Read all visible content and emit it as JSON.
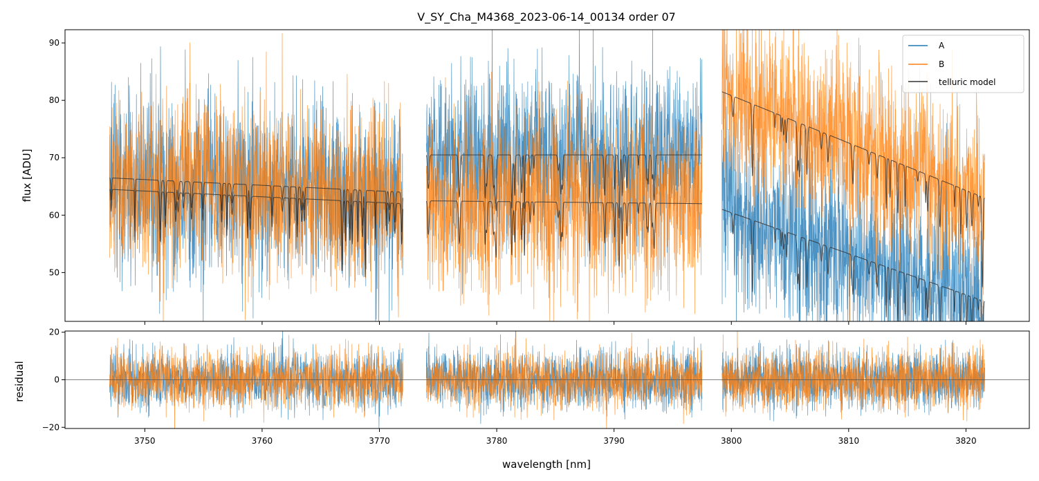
{
  "chart_data": [
    {
      "type": "line",
      "title": "V_SY_Cha_M4368_2023-06-14_00134  order 07",
      "xlabel": "",
      "ylabel": "flux [ADU]",
      "xlim": [
        3743.2,
        3825.4
      ],
      "ylim": [
        41.5,
        92.3
      ],
      "yticks": [
        50,
        60,
        70,
        80,
        90
      ],
      "ytick_labels": [
        "50",
        "60",
        "70",
        "80",
        "90"
      ],
      "segments": [
        [
          3747.0,
          3772.0
        ],
        [
          3774.0,
          3797.5
        ],
        [
          3799.2,
          3821.6
        ]
      ],
      "series": [
        {
          "name": "A",
          "color": "#1f77b4",
          "kind": "noisy spectrum",
          "trend": [
            [
              3747.0,
              65.0
            ],
            [
              3772.0,
              64.0
            ],
            [
              3774.0,
              70.5
            ],
            [
              3797.5,
              70.5
            ],
            [
              3799.2,
              61.0
            ],
            [
              3821.6,
              45.0
            ]
          ]
        },
        {
          "name": "B",
          "color": "#ff7f0e",
          "kind": "noisy spectrum",
          "trend": [
            [
              3747.0,
              66.5
            ],
            [
              3772.0,
              63.0
            ],
            [
              3774.0,
              62.5
            ],
            [
              3797.5,
              62.0
            ],
            [
              3799.2,
              81.5
            ],
            [
              3821.6,
              63.0
            ]
          ]
        },
        {
          "name": "telluric model",
          "color": "#333333",
          "kind": "smooth model with absorption lines",
          "trend": [
            [
              3747.0,
              66.5
            ],
            [
              3772.0,
              64.0
            ],
            [
              3774.0,
              70.5
            ],
            [
              3797.5,
              70.5
            ],
            [
              3799.2,
              81.5
            ],
            [
              3821.6,
              63.0
            ]
          ]
        },
        {
          "name": "telluric model",
          "color": "#333333",
          "kind": "smooth model with absorption lines",
          "trend": [
            [
              3747.0,
              64.5
            ],
            [
              3772.0,
              62.0
            ],
            [
              3774.0,
              62.5
            ],
            [
              3797.5,
              62.0
            ],
            [
              3799.2,
              61.0
            ],
            [
              3821.6,
              45.0
            ]
          ]
        }
      ],
      "legend": {
        "location": "top-right",
        "entries": [
          {
            "label": "A",
            "color": "#1f77b4"
          },
          {
            "label": "B",
            "color": "#ff7f0e"
          },
          {
            "label": "telluric model",
            "color": "#333333"
          }
        ]
      }
    },
    {
      "type": "line",
      "title": "",
      "xlabel": "wavelength [nm]",
      "ylabel": "residual",
      "xlim": [
        3743.2,
        3825.4
      ],
      "ylim": [
        -20.5,
        20.5
      ],
      "xticks": [
        3750,
        3760,
        3770,
        3780,
        3790,
        3800,
        3810,
        3820
      ],
      "xtick_labels": [
        "3750",
        "3760",
        "3770",
        "3780",
        "3790",
        "3800",
        "3810",
        "3820"
      ],
      "yticks": [
        -20,
        0,
        20
      ],
      "ytick_labels": [
        "−20",
        "0",
        "20"
      ],
      "zero_line": 0,
      "series": [
        {
          "name": "A",
          "color": "#1f77b4",
          "kind": "noise around zero",
          "std": 6
        },
        {
          "name": "B",
          "color": "#ff7f0e",
          "kind": "noise around zero",
          "std": 6
        }
      ]
    }
  ]
}
